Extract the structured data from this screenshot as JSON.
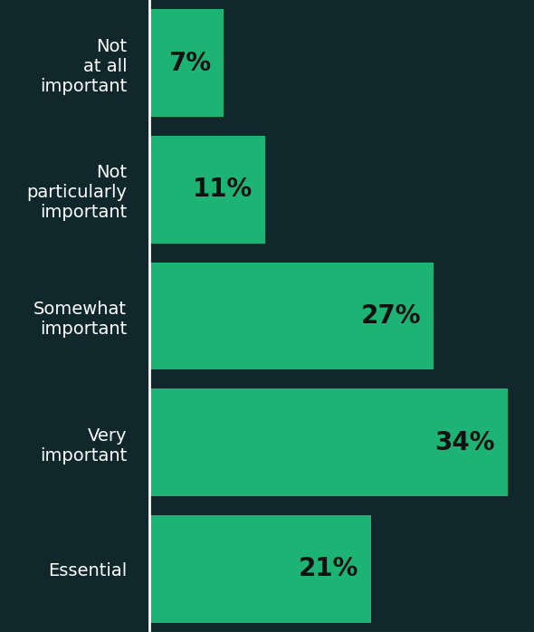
{
  "chart_data": {
    "type": "bar",
    "orientation": "horizontal",
    "categories": [
      "Not\nat all\nimportant",
      "Not\nparticularly\nimportant",
      "Somewhat\nimportant",
      "Very\nimportant",
      "Essential"
    ],
    "values": [
      7,
      11,
      27,
      34,
      21
    ],
    "value_labels": [
      "7%",
      "11%",
      "27%",
      "34%",
      "21%"
    ],
    "data_labels": true,
    "color": "#1db374",
    "xlim": [
      0,
      36
    ],
    "grid": false,
    "tick_labels": "y"
  }
}
